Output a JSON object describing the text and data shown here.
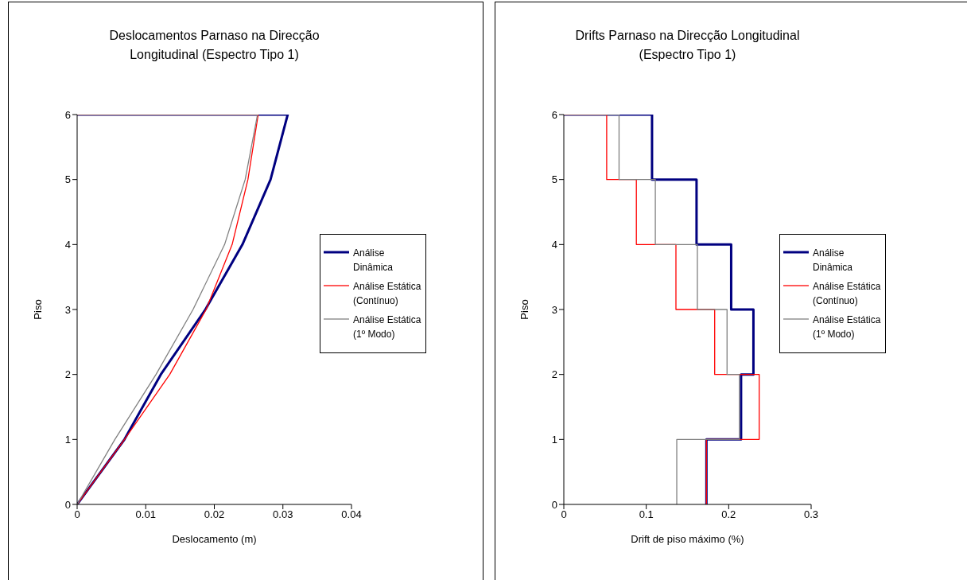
{
  "chart_data": [
    {
      "type": "line",
      "title": "Deslocamentos Parnaso na Direcção Longitudinal (Espectro Tipo 1)",
      "xlabel": "Deslocamento (m)",
      "ylabel": "Piso",
      "xlim": [
        0,
        0.04
      ],
      "xticks": [
        0,
        0.01,
        0.02,
        0.03,
        0.04
      ],
      "ylim": [
        0,
        6
      ],
      "yticks": [
        0,
        1,
        2,
        3,
        4,
        5,
        6
      ],
      "grid": false,
      "legend": "right",
      "marker": "none",
      "line_style": "solid",
      "series": [
        {
          "name": "Análise Dinâmica",
          "color": "#000080",
          "x": [
            0,
            0.0069,
            0.0122,
            0.0187,
            0.0241,
            0.0282,
            0.0307,
            0
          ],
          "values": [
            0,
            1,
            2,
            3,
            4,
            5,
            6,
            6
          ]
        },
        {
          "name": "Análise Estática (Contínuo)",
          "color": "#ff0000",
          "x": [
            0,
            0.0069,
            0.0135,
            0.0188,
            0.0226,
            0.0249,
            0.0264,
            0
          ],
          "values": [
            0,
            1,
            2,
            3,
            4,
            5,
            6,
            6
          ]
        },
        {
          "name": "Análise Estática (1º Modo)",
          "color": "#808080",
          "x": [
            0,
            0.0055,
            0.0115,
            0.0169,
            0.0215,
            0.0245,
            0.0263,
            0
          ],
          "values": [
            0,
            1,
            2,
            3,
            4,
            5,
            6,
            6
          ]
        }
      ]
    },
    {
      "type": "line",
      "title": "Drifts Parnaso na Direcção Longitudinal (Espectro Tipo 1)",
      "xlabel": "Drift de piso máximo (%)",
      "ylabel": "Piso",
      "xlim": [
        0,
        0.3
      ],
      "xticks": [
        0,
        0.1,
        0.2,
        0.3
      ],
      "ylim": [
        0,
        6
      ],
      "yticks": [
        0,
        1,
        2,
        3,
        4,
        5,
        6
      ],
      "grid": false,
      "legend": "right",
      "marker": "none",
      "line_style": "solid",
      "series": [
        {
          "name": "Análise Dinâmica",
          "color": "#000080",
          "x": [
            0,
            0.107,
            0.107,
            0.161,
            0.161,
            0.203,
            0.203,
            0.23,
            0.23,
            0.215,
            0.215,
            0.173,
            0.173
          ],
          "values": [
            6,
            6,
            5,
            5,
            4,
            4,
            3,
            3,
            2,
            2,
            1,
            1,
            0
          ]
        },
        {
          "name": "Análise Estática (Contínuo)",
          "color": "#ff0000",
          "x": [
            0,
            0.052,
            0.052,
            0.088,
            0.088,
            0.136,
            0.136,
            0.183,
            0.183,
            0.237,
            0.237,
            0.173,
            0.173
          ],
          "values": [
            6,
            6,
            5,
            5,
            4,
            4,
            3,
            3,
            2,
            2,
            1,
            1,
            0
          ]
        },
        {
          "name": "Análise Estática (1º Modo)",
          "color": "#808080",
          "x": [
            0,
            0.067,
            0.067,
            0.111,
            0.111,
            0.162,
            0.162,
            0.198,
            0.198,
            0.213,
            0.213,
            0.137,
            0.137
          ],
          "values": [
            6,
            6,
            5,
            5,
            4,
            4,
            3,
            3,
            2,
            2,
            1,
            1,
            0
          ]
        }
      ]
    }
  ]
}
